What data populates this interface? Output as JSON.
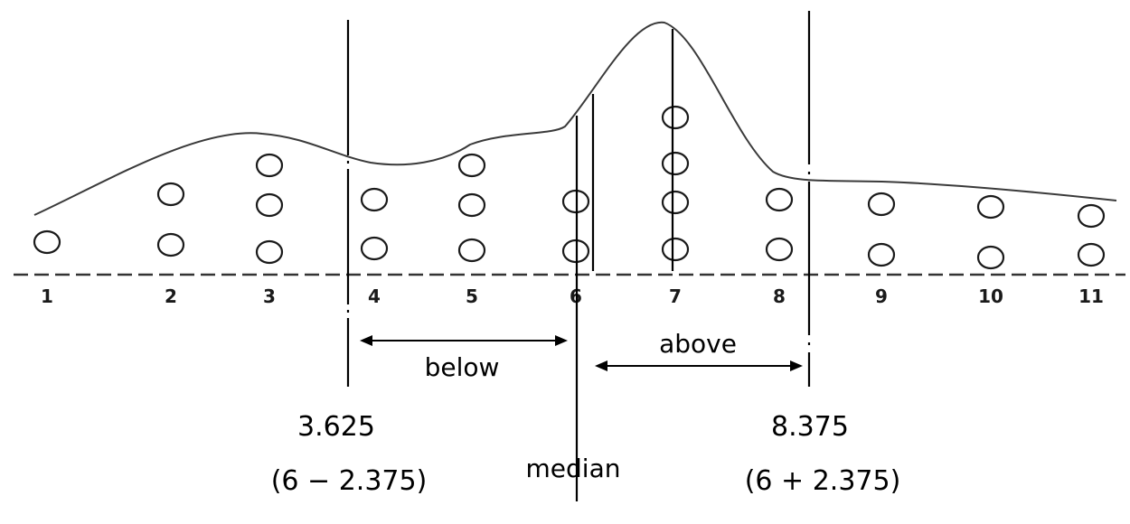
{
  "axis": {
    "ticks": [
      "1",
      "2",
      "3",
      "4",
      "5",
      "6",
      "7",
      "8",
      "9",
      "10",
      "11"
    ]
  },
  "dot_counts": [
    {
      "x": 1,
      "count": 1
    },
    {
      "x": 2,
      "count": 2
    },
    {
      "x": 3,
      "count": 3
    },
    {
      "x": 4,
      "count": 2
    },
    {
      "x": 5,
      "count": 3
    },
    {
      "x": 6,
      "count": 2
    },
    {
      "x": 7,
      "count": 4
    },
    {
      "x": 8,
      "count": 2
    },
    {
      "x": 9,
      "count": 2
    },
    {
      "x": 10,
      "count": 2
    },
    {
      "x": 11,
      "count": 2
    }
  ],
  "labels": {
    "below": "below",
    "above": "above",
    "median": "median",
    "lower_value": "3.625",
    "lower_expr": "(6 − 2.375)",
    "upper_value": "8.375",
    "upper_expr": "(6 + 2.375)"
  },
  "colors": {
    "ink": "#1a1a1a"
  }
}
